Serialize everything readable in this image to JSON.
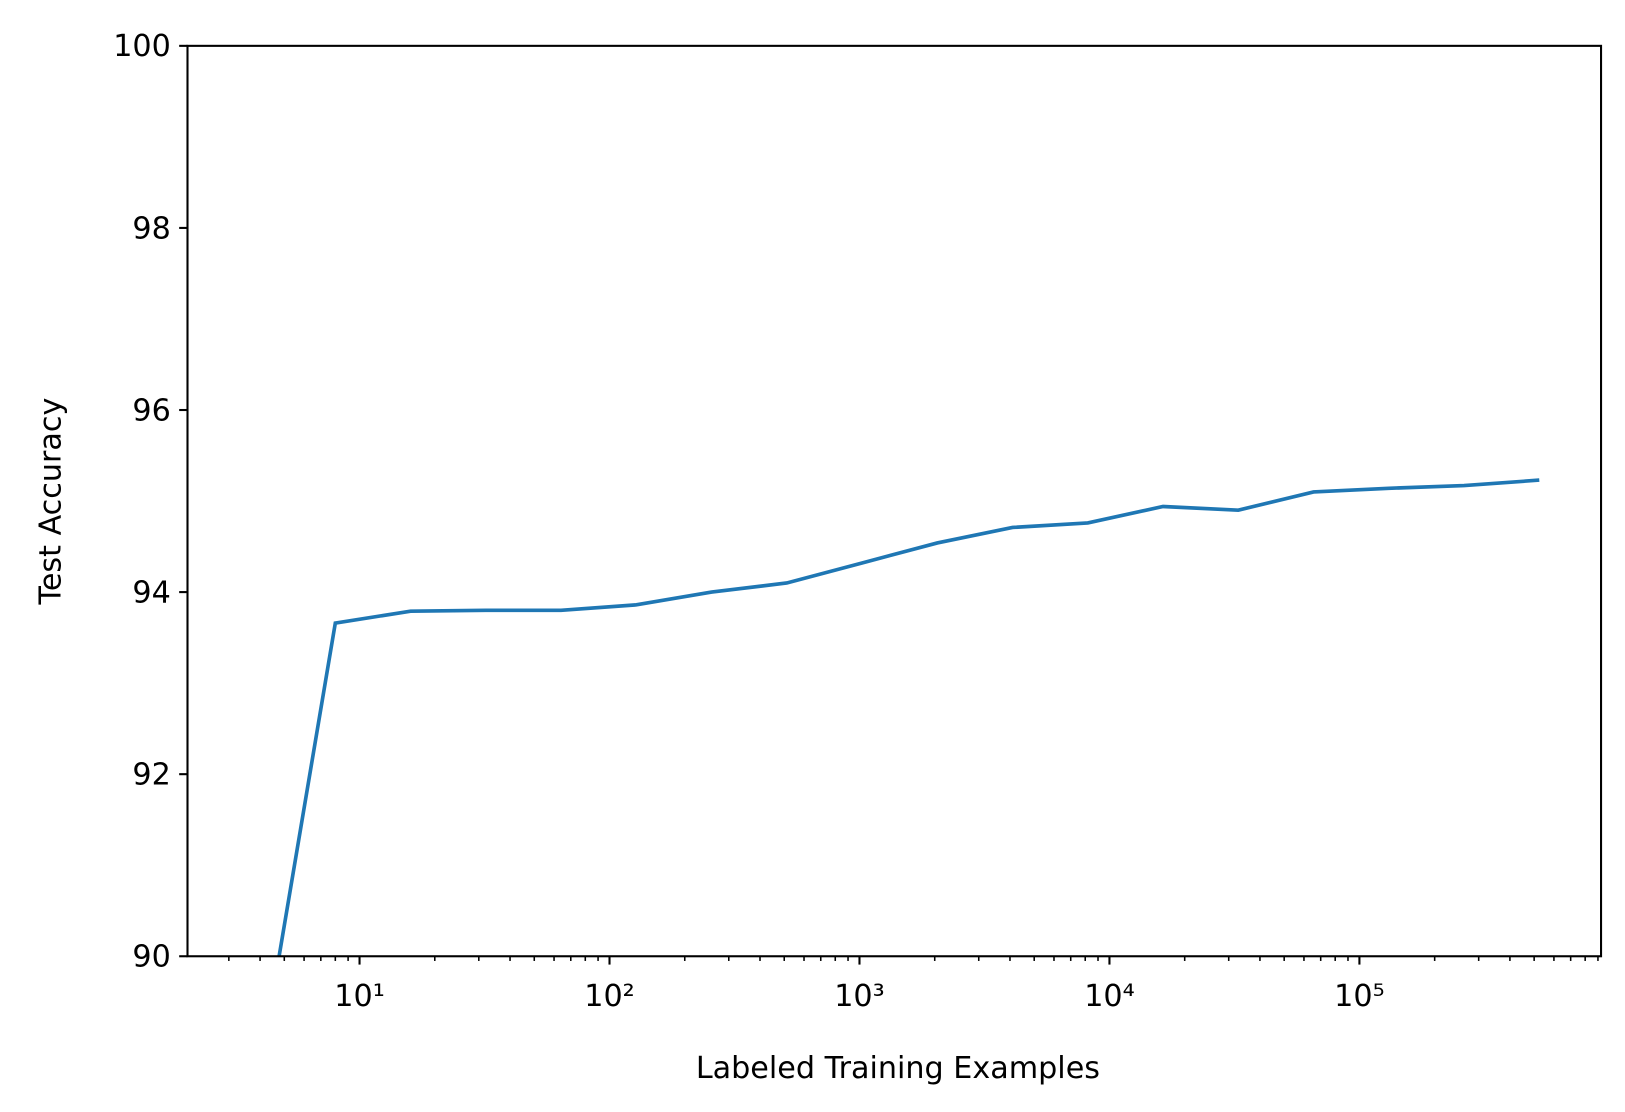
{
  "chart_data": {
    "type": "line",
    "xlabel": "Labeled Training Examples",
    "ylabel": "Test Accuracy",
    "xscale": "log",
    "x": [
      4,
      8,
      16,
      32,
      64,
      128,
      256,
      512,
      1024,
      2048,
      4096,
      8192,
      16384,
      32768,
      65536,
      131072,
      262144,
      524288
    ],
    "series": [
      {
        "name": "Test Accuracy",
        "color": "#1f77b4",
        "values": [
          88.76,
          93.66,
          93.79,
          93.8,
          93.8,
          93.86,
          94.0,
          94.1,
          94.32,
          94.54,
          94.71,
          94.76,
          94.94,
          94.9,
          95.1,
          95.14,
          95.17,
          95.23
        ]
      }
    ],
    "xlim": [
      2.05,
      926000
    ],
    "ylim": [
      90,
      100
    ],
    "xticks": [
      {
        "value": 10,
        "label": "10¹"
      },
      {
        "value": 100,
        "label": "10²"
      },
      {
        "value": 1000,
        "label": "10³"
      },
      {
        "value": 10000,
        "label": "10⁴"
      },
      {
        "value": 100000,
        "label": "10⁵"
      }
    ],
    "xminorticks": [
      3,
      4,
      5,
      6,
      7,
      8,
      9,
      20,
      30,
      40,
      50,
      60,
      70,
      80,
      90,
      200,
      300,
      400,
      500,
      600,
      700,
      800,
      900,
      2000,
      3000,
      4000,
      5000,
      6000,
      7000,
      8000,
      9000,
      20000,
      30000,
      40000,
      50000,
      60000,
      70000,
      80000,
      90000,
      200000,
      300000,
      400000,
      500000,
      600000,
      700000,
      800000,
      900000
    ],
    "yticks": [
      90,
      92,
      94,
      96,
      98,
      100
    ]
  }
}
